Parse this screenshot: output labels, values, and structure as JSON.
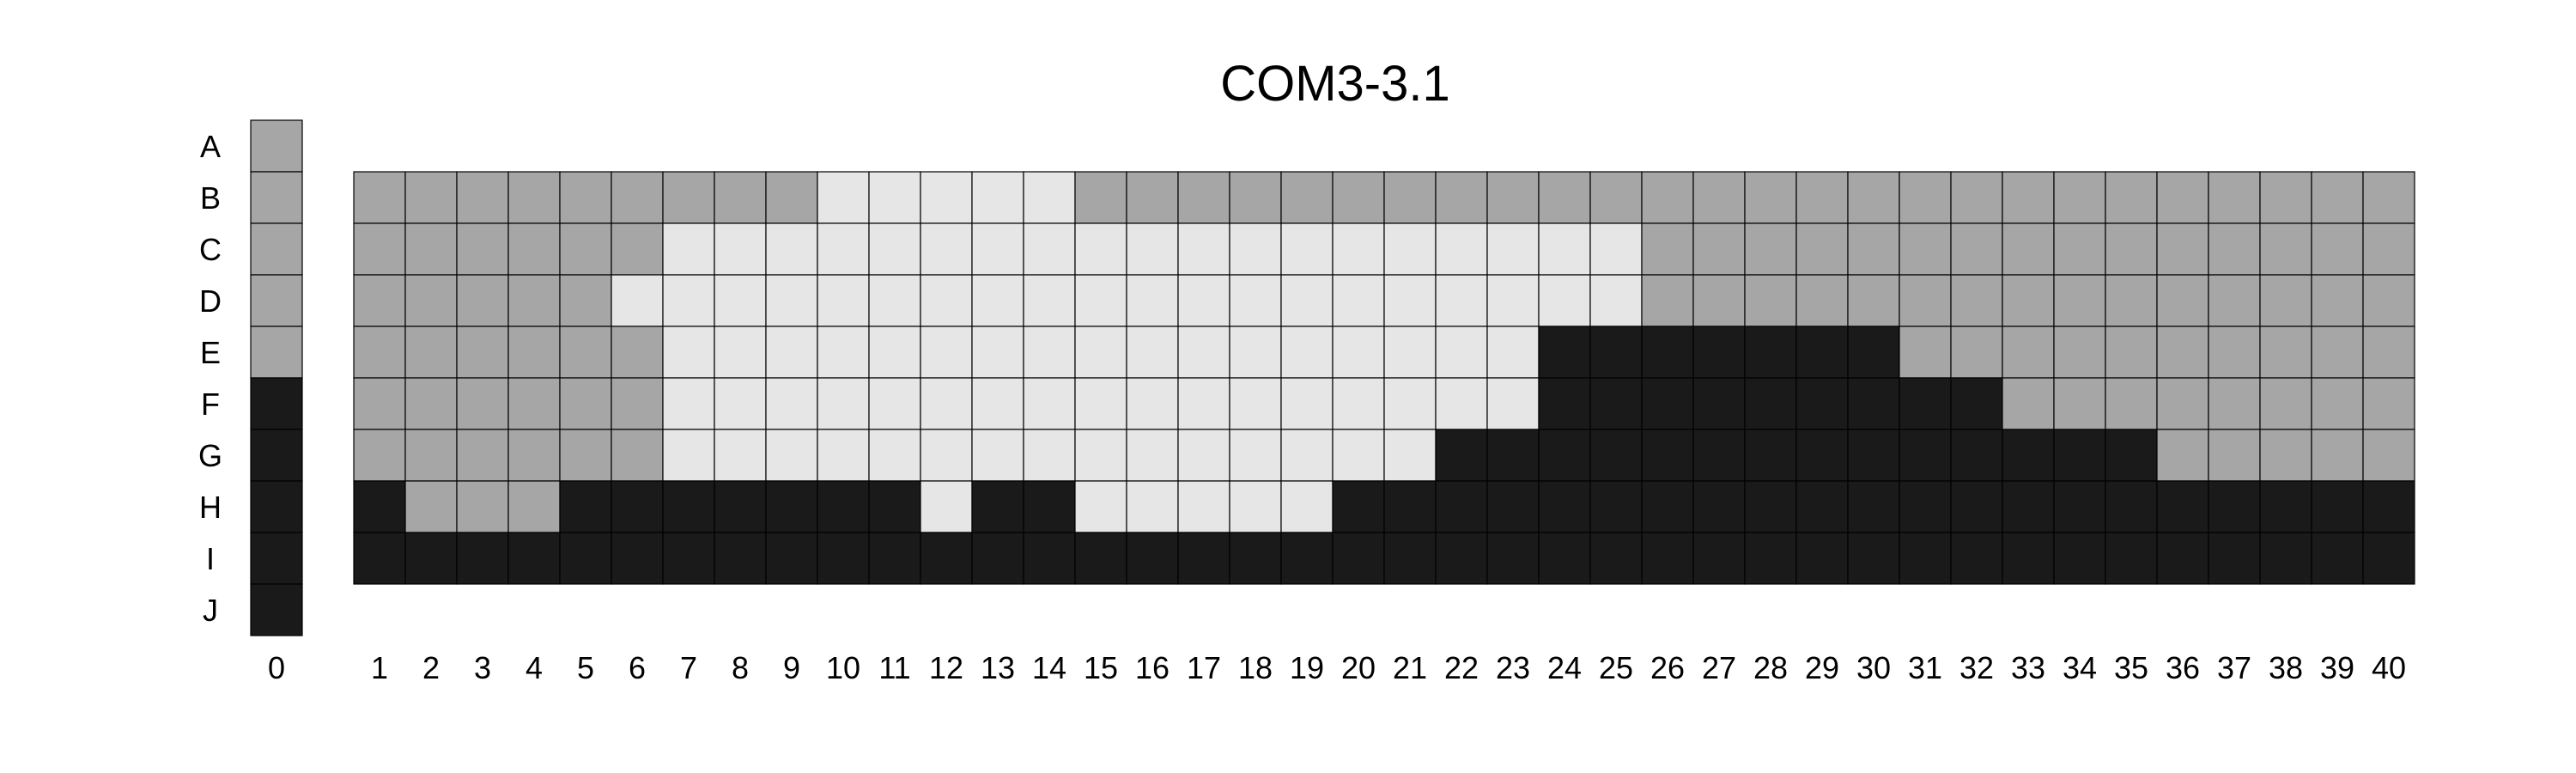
{
  "chart_data": {
    "type": "heatmap",
    "title": "COM3-3.1",
    "xlabel": "",
    "ylabel": "",
    "rows": [
      "A",
      "B",
      "C",
      "D",
      "E",
      "F",
      "G",
      "H",
      "I",
      "J"
    ],
    "columns": [
      "0",
      "1",
      "2",
      "3",
      "4",
      "5",
      "6",
      "7",
      "8",
      "9",
      "10",
      "11",
      "12",
      "13",
      "14",
      "15",
      "16",
      "17",
      "18",
      "19",
      "20",
      "21",
      "22",
      "23",
      "24",
      "25",
      "26",
      "27",
      "28",
      "29",
      "30",
      "31",
      "32",
      "33",
      "34",
      "35",
      "36",
      "37",
      "38",
      "39",
      "40"
    ],
    "legend": [
      {
        "code": "L",
        "color": "#e6e6e6"
      },
      {
        "code": "G",
        "color": "#a6a6a6"
      },
      {
        "code": "D",
        "color": "#1a1a1a"
      }
    ],
    "column_0": [
      "G",
      "G",
      "G",
      "G",
      "G",
      "D",
      "D",
      "D",
      "D",
      "D"
    ],
    "grid": {
      "rows": [
        "B",
        "C",
        "D",
        "E",
        "F",
        "G",
        "H",
        "I"
      ],
      "values": [
        "GGGGGGGGGLLLLLGGGGGGGGGGGGGGGGGGGGGGGGGG",
        "GGGGGGLLLLLLLLLLLLLLLLLLLGGGGGGGGGGGGGGG",
        "GGGGGLLLLLLLLLLLLLLLLLLLLGGGGGGGGGGGGGGG",
        "GGGGGGLLLLLLLLLLLLLLLLLDDDDDDDGGGGGGGGGG",
        "GGGGGGLLLLLLLLLLLLLLLLLDDDDDDDDDGGGGGGGG",
        "GGGGGGLLLLLLLLLLLLLLLDDDDDDDDDDDDDDGGGGG",
        "DGGGDDDDDDDLDDLLLLLDDDDDDDDDDDDDDDDDDDDD",
        "DDDDDDDDDDDDDDDDDDDDDDDDDDDDDDDDDDDDDDDD"
      ]
    }
  }
}
